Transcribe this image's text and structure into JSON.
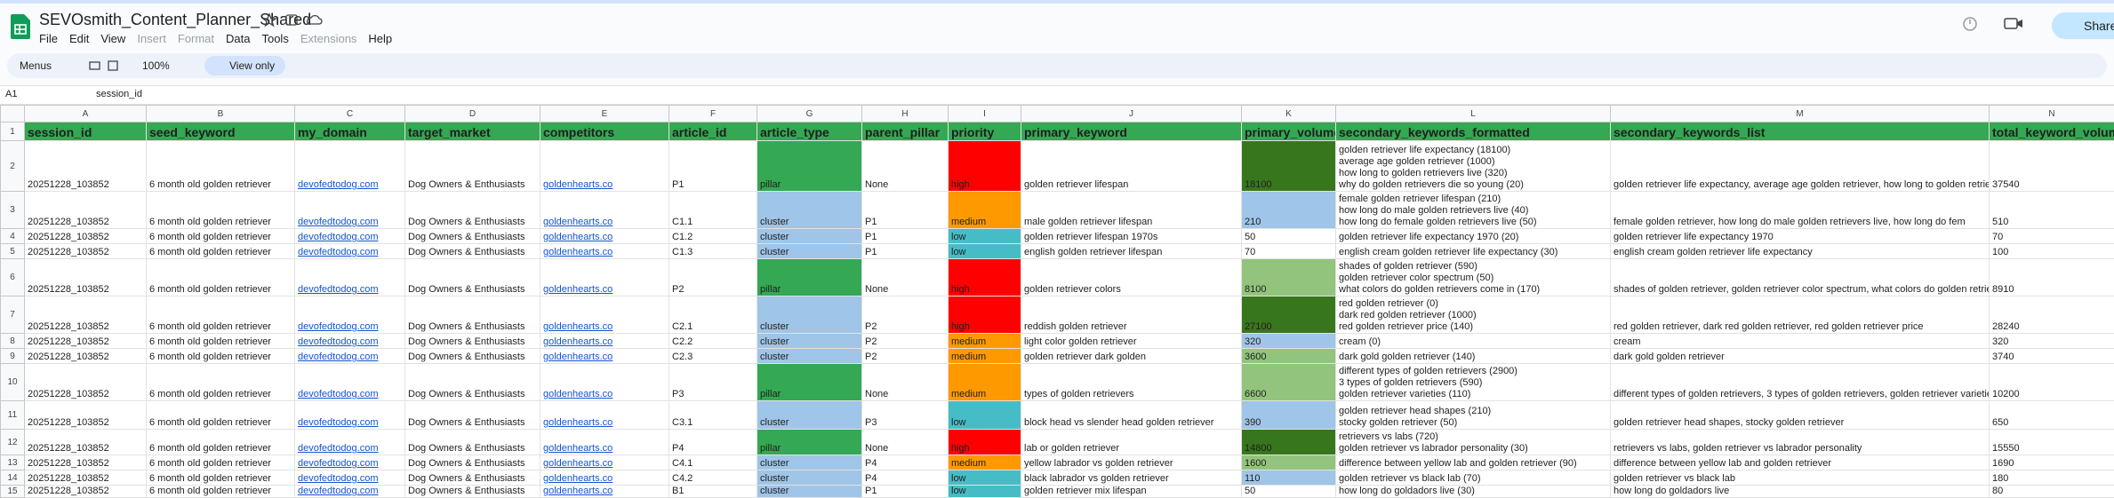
{
  "header": {
    "title": "SEVOsmith_Content_Planner_Shared",
    "menus": [
      "File",
      "Edit",
      "View",
      "Insert",
      "Format",
      "Data",
      "Tools",
      "Extensions",
      "Help"
    ],
    "share": "Share"
  },
  "toolbar": {
    "search": "Menus",
    "zoom": "100%",
    "mode": "View only"
  },
  "formula_bar": {
    "cell_ref": "A1",
    "content": "session_id"
  },
  "columns": [
    "A",
    "B",
    "C",
    "D",
    "E",
    "F",
    "G",
    "H",
    "I",
    "J",
    "K",
    "L",
    "M",
    "N"
  ],
  "row_numbers": [
    "1",
    "2",
    "3",
    "4",
    "5",
    "6",
    "7",
    "8",
    "9",
    "10",
    "11",
    "12",
    "13",
    "14",
    "15"
  ],
  "table": {
    "headers": [
      "session_id",
      "seed_keyword",
      "my_domain",
      "target_market",
      "competitors",
      "article_id",
      "article_type",
      "parent_pillar",
      "priority",
      "primary_keyword",
      "primary_volume",
      "secondary_keywords_formatted",
      "secondary_keywords_list",
      "total_keyword_volume"
    ],
    "header_fill": "#34a853",
    "fills": {
      "pillar": "#34a853",
      "cluster": "#9fc5e8",
      "high": "#ff0000",
      "medium": "#ff9900",
      "low": "#46bdc6"
    },
    "volume_fills": [
      "#38761d",
      "#9fc5e8",
      "#ffffff",
      "#ffffff",
      "#93c47d",
      "#38761d",
      "#9fc5e8",
      "#93c47d",
      "#93c47d",
      "#9fc5e8",
      "#38761d",
      "#93c47d",
      "#9fc5e8",
      "#ffffff"
    ],
    "rows": [
      [
        "20251228_103852",
        "6 month old golden retriever",
        "devofedtodog.com",
        "Dog Owners & Enthusiasts",
        "goldenhearts.co",
        "P1",
        "pillar",
        "None",
        "high",
        "golden retriever lifespan",
        "18100",
        "golden retriever life expectancy (18100)\naverage age golden retriever (1000)\nhow long to golden retrievers live (320)\nwhy do golden retrievers die so young (20)",
        "golden retriever life expectancy, average age golden retriever, how long to golden retrieve",
        "37540"
      ],
      [
        "20251228_103852",
        "6 month old golden retriever",
        "devofedtodog.com",
        "Dog Owners & Enthusiasts",
        "goldenhearts.co",
        "C1.1",
        "cluster",
        "P1",
        "medium",
        "male golden retriever lifespan",
        "210",
        "female golden retriever lifespan (210)\nhow long do male golden retrievers live (40)\nhow long do female golden retrievers live (50)",
        "female golden retriever, how long do male golden retrievers live, how long do fem",
        "510"
      ],
      [
        "20251228_103852",
        "6 month old golden retriever",
        "devofedtodog.com",
        "Dog Owners & Enthusiasts",
        "goldenhearts.co",
        "C1.2",
        "cluster",
        "P1",
        "low",
        "golden retriever lifespan 1970s",
        "50",
        "golden retriever life expectancy 1970 (20)",
        "golden retriever life expectancy 1970",
        "70"
      ],
      [
        "20251228_103852",
        "6 month old golden retriever",
        "devofedtodog.com",
        "Dog Owners & Enthusiasts",
        "goldenhearts.co",
        "C1.3",
        "cluster",
        "P1",
        "low",
        "english golden retriever lifespan",
        "70",
        "english cream golden retriever life expectancy (30)",
        "english cream golden retriever life expectancy",
        "100"
      ],
      [
        "20251228_103852",
        "6 month old golden retriever",
        "devofedtodog.com",
        "Dog Owners & Enthusiasts",
        "goldenhearts.co",
        "P2",
        "pillar",
        "None",
        "high",
        "golden retriever colors",
        "8100",
        "shades of golden retriever (590)\ngolden retriever color spectrum (50)\nwhat colors do golden retrievers come in (170)",
        "shades of golden retriever, golden retriever color spectrum, what colors do golden retrie",
        "8910"
      ],
      [
        "20251228_103852",
        "6 month old golden retriever",
        "devofedtodog.com",
        "Dog Owners & Enthusiasts",
        "goldenhearts.co",
        "C2.1",
        "cluster",
        "P2",
        "high",
        "reddish golden retriever",
        "27100",
        "red golden retriever (0)\ndark red golden retriever (1000)\nred golden retriever price (140)",
        "red golden retriever, dark red golden retriever, red golden retriever price",
        "28240"
      ],
      [
        "20251228_103852",
        "6 month old golden retriever",
        "devofedtodog.com",
        "Dog Owners & Enthusiasts",
        "goldenhearts.co",
        "C2.2",
        "cluster",
        "P2",
        "medium",
        "light color golden retriever",
        "320",
        "cream (0)",
        "cream",
        "320"
      ],
      [
        "20251228_103852",
        "6 month old golden retriever",
        "devofedtodog.com",
        "Dog Owners & Enthusiasts",
        "goldenhearts.co",
        "C2.3",
        "cluster",
        "P2",
        "medium",
        "golden retriever dark golden",
        "3600",
        "dark gold golden retriever (140)",
        "dark gold golden retriever",
        "3740"
      ],
      [
        "20251228_103852",
        "6 month old golden retriever",
        "devofedtodog.com",
        "Dog Owners & Enthusiasts",
        "goldenhearts.co",
        "P3",
        "pillar",
        "None",
        "medium",
        "types of golden retrievers",
        "6600",
        "different types of golden retrievers (2900)\n3 types of golden retrievers (590)\ngolden retriever varieties (110)",
        "different types of golden retrievers, 3 types of golden retrievers, golden retriever varieties",
        "10200"
      ],
      [
        "20251228_103852",
        "6 month old golden retriever",
        "devofedtodog.com",
        "Dog Owners & Enthusiasts",
        "goldenhearts.co",
        "C3.1",
        "cluster",
        "P3",
        "low",
        "block head vs slender head golden retriever",
        "390",
        "golden retriever head shapes (210)\nstocky golden retriever (50)",
        "golden retriever head shapes, stocky golden retriever",
        "650"
      ],
      [
        "20251228_103852",
        "6 month old golden retriever",
        "devofedtodog.com",
        "Dog Owners & Enthusiasts",
        "goldenhearts.co",
        "P4",
        "pillar",
        "None",
        "high",
        "lab or golden retriever",
        "14800",
        "retrievers vs labs (720)\ngolden retriever vs labrador personality (30)",
        "retrievers vs labs, golden retriever vs labrador personality",
        "15550"
      ],
      [
        "20251228_103852",
        "6 month old golden retriever",
        "devofedtodog.com",
        "Dog Owners & Enthusiasts",
        "goldenhearts.co",
        "C4.1",
        "cluster",
        "P4",
        "medium",
        "yellow labrador vs golden retriever",
        "1600",
        "difference between yellow lab and golden retriever (90)",
        "difference between yellow lab and golden retriever",
        "1690"
      ],
      [
        "20251228_103852",
        "6 month old golden retriever",
        "devofedtodog.com",
        "Dog Owners & Enthusiasts",
        "goldenhearts.co",
        "C4.2",
        "cluster",
        "P4",
        "low",
        "black labrador vs golden retriever",
        "110",
        "golden retriever vs black lab (70)",
        "golden retriever vs black lab",
        "180"
      ],
      [
        "20251228_103852",
        "6 month old golden retriever",
        "devofedtodog.com",
        "Dog Owners & Enthusiasts",
        "goldenhearts.co",
        "B1",
        "cluster",
        "P1",
        "low",
        "golden retriever mix lifespan",
        "50",
        "how long do goldadors live (30)",
        "how long do goldadors live",
        "80"
      ]
    ]
  }
}
